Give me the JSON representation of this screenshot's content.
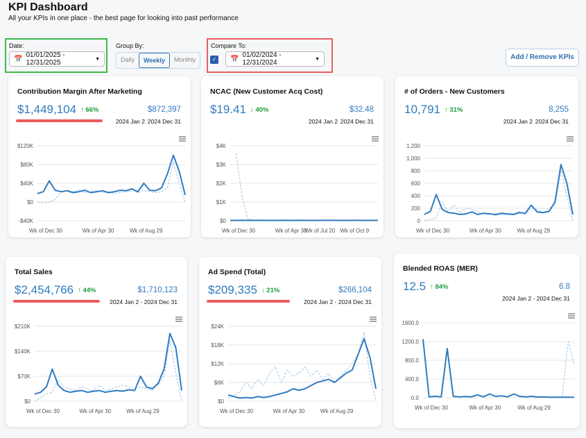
{
  "header": {
    "title": "KPI Dashboard",
    "subtitle": "All your KPIs in one place - the best page for looking into past performance"
  },
  "controls": {
    "date_label": "Date:",
    "date_value": "01/01/2025 - 12/31/2025",
    "group_by_label": "Group By:",
    "group_by_options": [
      "Daily",
      "Weekly",
      "Monthly"
    ],
    "group_by_selected": "Weekly",
    "compare_label": "Compare To:",
    "compare_checked": true,
    "compare_value": "01/02/2024 - 12/31/2024",
    "button": "Add / Remove KPIs"
  },
  "cards": [
    {
      "title": "Contribution Margin After Marketing",
      "value": "$1,449,104",
      "change": "↑ 66%",
      "compare_value": "$872,397",
      "compare_labels": [
        "2024 Jan 2",
        "2024 Dec 31"
      ],
      "chart": {
        "type": "line",
        "categories": [
          "Wk of Dec 30",
          null,
          null,
          null,
          null,
          null,
          null,
          null,
          null,
          "Wk of Apr 30",
          null,
          null,
          null,
          null,
          null,
          null,
          null,
          "Wk of Aug 29",
          null,
          null,
          null,
          null,
          null,
          null,
          null,
          null
        ],
        "ylim": [
          -40000,
          120000
        ],
        "yticks": [
          {
            "value": -40000,
            "label": "-$40K"
          },
          {
            "value": 0,
            "label": "$0"
          },
          {
            "value": 40000,
            "label": "$40K"
          },
          {
            "value": 80000,
            "label": "$80K"
          },
          {
            "value": 120000,
            "label": "$120K"
          }
        ],
        "series": [
          {
            "color": "#2f7bbf",
            "values": [
              18000,
              22000,
              45000,
              25000,
              22000,
              24000,
              20000,
              22000,
              25000,
              20000,
              22000,
              24000,
              20000,
              22000,
              25000,
              24000,
              28000,
              22000,
              40000,
              25000,
              24000,
              30000,
              60000,
              100000,
              65000,
              15000
            ]
          },
          {
            "color": "#a9cdec",
            "dashed": true,
            "values": [
              0,
              -2000,
              0,
              5000,
              20000,
              25000,
              22000,
              25000,
              20000,
              23000,
              25000,
              20000,
              22000,
              18000,
              20000,
              22000,
              24000,
              20000,
              25000,
              22000,
              20000,
              22000,
              30000,
              85000,
              40000,
              0
            ]
          }
        ]
      }
    },
    {
      "title": "NCAC (New Customer Acq Cost)",
      "value": "$19.41",
      "change": "↓ 40%",
      "compare_value": "$32.48",
      "compare_labels": [
        "2024 Jan 2",
        "2024 Dec 31"
      ],
      "chart": {
        "type": "line",
        "categories": [
          "Wk of Dec 30",
          null,
          null,
          null,
          null,
          null,
          null,
          null,
          null,
          "Wk of Apr 30",
          null,
          null,
          null,
          null,
          "Wk of Jul 20",
          null,
          null,
          null,
          null,
          null,
          "Wk of Oct 9",
          null,
          null,
          null,
          null,
          null
        ],
        "ylim": [
          0,
          4000
        ],
        "yticks": [
          {
            "value": 0,
            "label": "$0"
          },
          {
            "value": 1000,
            "label": "$1K"
          },
          {
            "value": 2000,
            "label": "$2K"
          },
          {
            "value": 3000,
            "label": "$3K"
          },
          {
            "value": 4000,
            "label": "$4K"
          }
        ],
        "series": [
          {
            "color": "#2f7bbf",
            "values": [
              20,
              18,
              22,
              20,
              19,
              21,
              20,
              18,
              20,
              22,
              19,
              20,
              21,
              20,
              19,
              20,
              22,
              21,
              20,
              19,
              20,
              21,
              18,
              19,
              20,
              21
            ]
          },
          {
            "color": "#a9cdec",
            "dashed": true,
            "values": [
              null,
              3600,
              1300,
              100,
              40,
              30,
              30,
              25,
              30,
              28,
              30,
              27,
              30,
              28,
              30,
              29,
              30,
              28,
              30,
              27,
              30,
              29,
              30,
              28,
              30,
              32
            ]
          }
        ]
      }
    },
    {
      "title": "# of Orders - New Customers",
      "value": "10,791",
      "change": "↑ 31%",
      "compare_value": "8,255",
      "compare_labels": [
        "2024 Jan 2",
        "2024 Dec 31"
      ],
      "chart": {
        "type": "line",
        "categories": [
          "Wk of Dec 30",
          null,
          null,
          null,
          null,
          null,
          null,
          null,
          null,
          "Wk of Apr 30",
          null,
          null,
          null,
          null,
          null,
          null,
          null,
          "Wk of Aug 29",
          null,
          null,
          null,
          null,
          null,
          null,
          null,
          null
        ],
        "ylim": [
          0,
          1200
        ],
        "yticks": [
          0,
          200,
          400,
          600,
          800,
          {
            "value": 1000,
            "label": "1,000"
          },
          {
            "value": 1200,
            "label": "1,200"
          }
        ],
        "series": [
          {
            "color": "#2f7bbf",
            "values": [
              100,
              150,
              420,
              180,
              130,
              120,
              100,
              110,
              140,
              100,
              120,
              110,
              100,
              120,
              110,
              100,
              130,
              120,
              250,
              140,
              130,
              150,
              300,
              900,
              600,
              100
            ]
          },
          {
            "color": "#a9cdec",
            "dashed": true,
            "values": [
              0,
              20,
              50,
              300,
              150,
              250,
              120,
              200,
              180,
              150,
              100,
              120,
              80,
              100,
              90,
              110,
              150,
              100,
              200,
              180,
              120,
              200,
              250,
              800,
              400,
              0
            ]
          }
        ]
      }
    },
    {
      "title": "Total Sales",
      "value": "$2,454,766",
      "change": "↑ 44%",
      "compare_value": "$1,710,123",
      "compare_labels": [
        "2024 Jan 2 - 2024 Dec 31"
      ],
      "chart": {
        "type": "line",
        "categories": [
          "Wk of Dec 30",
          null,
          null,
          null,
          null,
          null,
          null,
          null,
          null,
          "Wk of Apr 30",
          null,
          null,
          null,
          null,
          null,
          null,
          null,
          "Wk of Aug 29",
          null,
          null,
          null,
          null,
          null,
          null,
          null,
          null
        ],
        "ylim": [
          0,
          210000
        ],
        "yticks": [
          {
            "value": 0,
            "label": "$0"
          },
          {
            "value": 70000,
            "label": "$70K"
          },
          {
            "value": 140000,
            "label": "$140K"
          },
          {
            "value": 210000,
            "label": "$210K"
          }
        ],
        "series": [
          {
            "color": "#2f7bbf",
            "values": [
              20000,
              25000,
              40000,
              90000,
              45000,
              30000,
              25000,
              28000,
              30000,
              25000,
              28000,
              30000,
              25000,
              28000,
              30000,
              28000,
              32000,
              30000,
              70000,
              40000,
              35000,
              50000,
              90000,
              190000,
              150000,
              30000
            ]
          },
          {
            "color": "#a9cdec",
            "dashed": true,
            "values": [
              0,
              10000,
              20000,
              25000,
              60000,
              40000,
              35000,
              30000,
              40000,
              35000,
              30000,
              45000,
              30000,
              35000,
              40000,
              45000,
              40000,
              35000,
              40000,
              35000,
              30000,
              45000,
              70000,
              170000,
              80000,
              0
            ]
          }
        ]
      }
    },
    {
      "title": "Ad Spend (Total)",
      "value": "$209,335",
      "change": "↓ 21%",
      "compare_value": "$266,104",
      "compare_labels": [
        "2024 Jan 2 - 2024 Dec 31"
      ],
      "chart": {
        "type": "line",
        "categories": [
          "Wk of Dec 30",
          null,
          null,
          null,
          null,
          null,
          null,
          null,
          null,
          "Wk of Apr 30",
          null,
          null,
          null,
          null,
          null,
          null,
          null,
          "Wk of Aug 29",
          null,
          null,
          null,
          null,
          null,
          null,
          null,
          null
        ],
        "ylim": [
          0,
          24000
        ],
        "yticks": [
          {
            "value": 0,
            "label": "$0"
          },
          {
            "value": 6000,
            "label": "$6K"
          },
          {
            "value": 12000,
            "label": "$12K"
          },
          {
            "value": 18000,
            "label": "$18K"
          },
          {
            "value": 24000,
            "label": "$24K"
          }
        ],
        "series": [
          {
            "color": "#2f7bbf",
            "values": [
              2000,
              1500,
              1000,
              1200,
              1000,
              1500,
              1200,
              1500,
              2000,
              2500,
              3000,
              4000,
              3500,
              4000,
              5000,
              6000,
              6500,
              7000,
              6000,
              7500,
              9000,
              10000,
              15000,
              20000,
              14000,
              4000
            ]
          },
          {
            "color": "#a9cdec",
            "dashed": true,
            "values": [
              1000,
              2000,
              3000,
              6000,
              4000,
              7000,
              5000,
              9000,
              11000,
              6000,
              10000,
              8000,
              9000,
              11000,
              8000,
              10000,
              7000,
              9000,
              6000,
              8000,
              10000,
              12000,
              15000,
              22000,
              8000,
              0
            ]
          }
        ]
      }
    },
    {
      "title": "Blended ROAS (MER)",
      "value": "12.5",
      "change": "↑ 84%",
      "compare_value": "6.8",
      "compare_labels": [
        "2024 Jan 2 - 2024 Dec 31"
      ],
      "chart": {
        "type": "line",
        "categories": [
          "Wk of Dec 30",
          null,
          null,
          null,
          null,
          null,
          null,
          null,
          null,
          "Wk of Apr 30",
          null,
          null,
          null,
          null,
          null,
          null,
          null,
          "Wk of Aug 29",
          null,
          null,
          null,
          null,
          null,
          null,
          null,
          null
        ],
        "ylim": [
          0,
          1600
        ],
        "yticks": [
          {
            "value": 0,
            "label": "0.0"
          },
          {
            "value": 400,
            "label": "400.0"
          },
          {
            "value": 800,
            "label": "800.0"
          },
          {
            "value": 1200,
            "label": "1200.0"
          },
          {
            "value": 1600,
            "label": "1600.0"
          }
        ],
        "series": [
          {
            "color": "#2f7bbf",
            "values": [
              1250,
              20,
              30,
              20,
              1050,
              30,
              20,
              25,
              20,
              60,
              20,
              80,
              30,
              40,
              20,
              80,
              30,
              20,
              30,
              15,
              20,
              10,
              12,
              12,
              12,
              12
            ]
          },
          {
            "color": "#a9cdec",
            "dashed": true,
            "values": [
              null,
              null,
              null,
              null,
              null,
              null,
              null,
              null,
              null,
              null,
              null,
              null,
              null,
              null,
              null,
              null,
              null,
              null,
              null,
              null,
              null,
              null,
              null,
              10,
              1200,
              700
            ]
          }
        ]
      }
    }
  ]
}
